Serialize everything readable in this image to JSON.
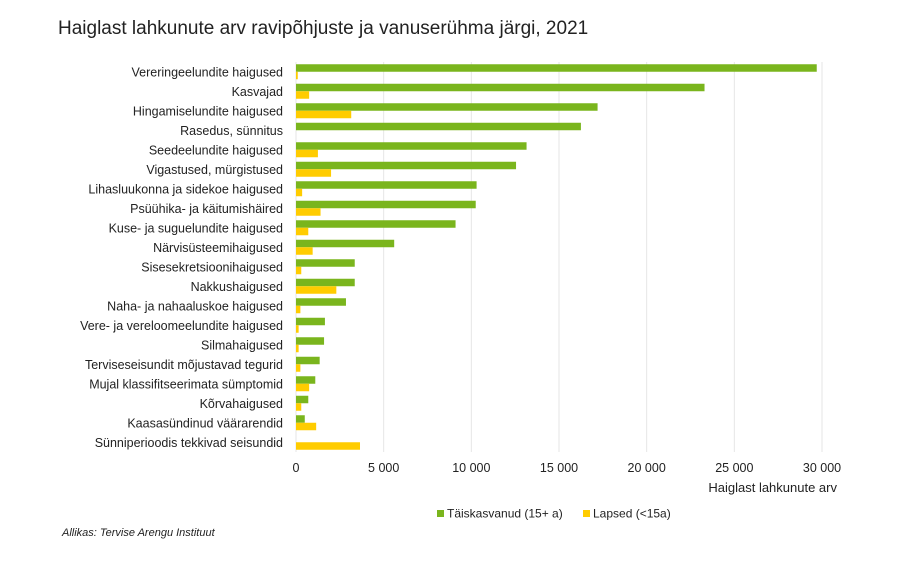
{
  "chart_data": {
    "type": "bar",
    "orientation": "horizontal",
    "title": "Haiglast lahkunute arv ravipõhjuste ja vanuserühma järgi, 2021",
    "xlabel": "Haiglast lahkunute arv",
    "ylabel": "",
    "xlim": [
      0,
      30000
    ],
    "xticks": [
      0,
      5000,
      10000,
      15000,
      20000,
      25000,
      30000
    ],
    "xtick_labels": [
      "0",
      "5 000",
      "10 000",
      "15 000",
      "20 000",
      "25 000",
      "30 000"
    ],
    "grid": true,
    "legend_position": "bottom",
    "categories": [
      "Vereringeelundite haigused",
      "Kasvajad",
      "Hingamiselundite haigused",
      "Rasedus, sünnitus",
      "Seedeelundite haigused",
      "Vigastused, mürgistused",
      "Lihasluukonna ja sidekoe haigused",
      "Psüühika- ja käitumishäired",
      "Kuse- ja suguelundite haigused",
      "Närvisüsteemihaigused",
      "Sisesekretsioonihaigused",
      "Nakkushaigused",
      "Naha- ja nahaaluskoe haigused",
      "Vere- ja vereloomeelundite haigused",
      "Silmahaigused",
      "Terviseseisundit mõjustavad tegurid",
      "Mujal klassifitseerimata sümptomid",
      "Kõrvahaigused",
      "Kaasasündinud väärarendid",
      "Sünniperioodis tekkivad seisundid"
    ],
    "series": [
      {
        "name": "Täiskasvanud (15+ a)",
        "color": "#7ab51d",
        "values": [
          29700,
          23300,
          17200,
          16250,
          13150,
          12550,
          10300,
          10250,
          9100,
          5600,
          3350,
          3350,
          2850,
          1650,
          1600,
          1350,
          1100,
          700,
          500,
          0
        ]
      },
      {
        "name": "Lapsed (<15a)",
        "color": "#ffcc00",
        "values": [
          100,
          750,
          3150,
          0,
          1250,
          2000,
          350,
          1400,
          700,
          950,
          300,
          2300,
          250,
          150,
          150,
          250,
          750,
          300,
          1150,
          3650
        ]
      }
    ]
  },
  "source": "Allikas: Tervise Arengu Instituut"
}
